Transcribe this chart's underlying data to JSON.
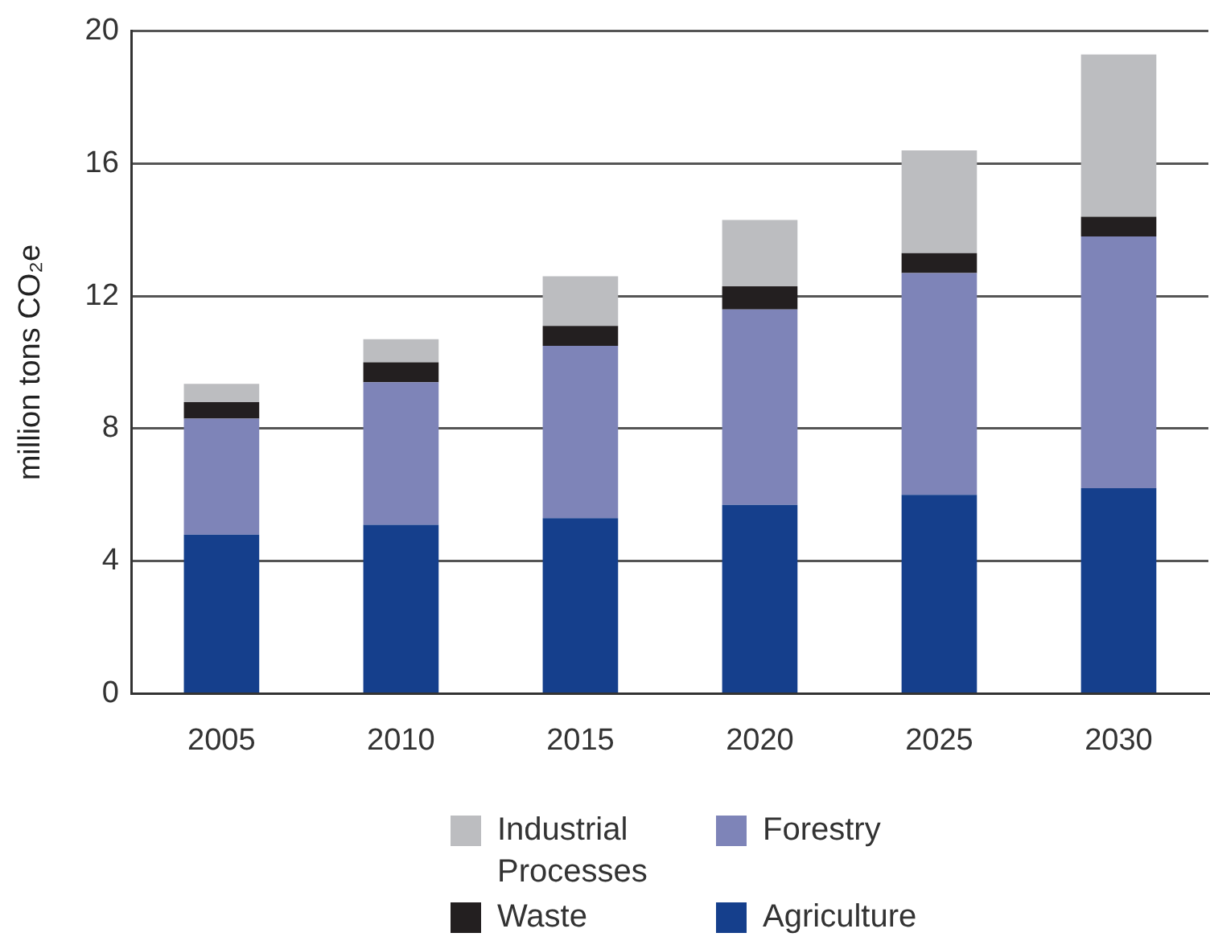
{
  "chart_data": {
    "type": "bar",
    "stacked": true,
    "ylabel": "million tons CO₂e",
    "categories": [
      "2005",
      "2010",
      "2015",
      "2020",
      "2025",
      "2030"
    ],
    "series": [
      {
        "name": "Agriculture",
        "color": "#153f8c",
        "values": [
          4.8,
          5.1,
          5.3,
          5.7,
          6.0,
          6.2
        ]
      },
      {
        "name": "Forestry",
        "color": "#7e84b8",
        "values": [
          3.5,
          4.3,
          5.2,
          5.9,
          6.7,
          7.6
        ]
      },
      {
        "name": "Waste",
        "color": "#231f20",
        "values": [
          0.5,
          0.6,
          0.6,
          0.7,
          0.6,
          0.6
        ]
      },
      {
        "name": "Industrial Processes",
        "color": "#bcbdc0",
        "values": [
          0.55,
          0.7,
          1.5,
          2.0,
          3.1,
          4.9
        ]
      }
    ],
    "ylim": [
      0,
      20
    ],
    "yticks": [
      0,
      4,
      8,
      12,
      16,
      20
    ],
    "grid": "y",
    "legend": "bottom"
  }
}
